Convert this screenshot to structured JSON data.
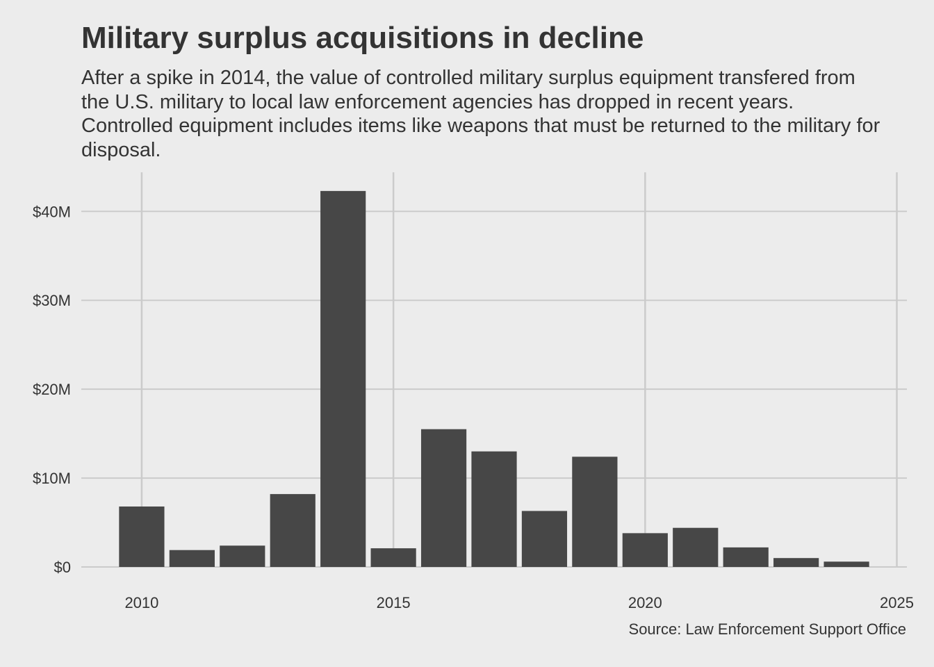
{
  "title": "Military surplus acquisitions in decline",
  "subtitle": "After a spike in 2014, the value of controlled military surplus equipment transfered from the U.S. military to local law enforcement agencies has dropped in recent years. Controlled equipment includes items like weapons that must be returned to the military for disposal.",
  "caption": "Source: Law Enforcement Support Office",
  "colors": {
    "background": "#ececec",
    "bar": "#474747",
    "grid": "#cbcbcb",
    "text": "#333333"
  },
  "chart_data": {
    "type": "bar",
    "title": "Military surplus acquisitions in decline",
    "xlabel": "",
    "ylabel": "",
    "x": [
      2010,
      2011,
      2012,
      2013,
      2014,
      2015,
      2016,
      2017,
      2018,
      2019,
      2020,
      2021,
      2022,
      2023,
      2024
    ],
    "values": [
      6.8,
      1.9,
      2.4,
      8.2,
      42.3,
      2.1,
      15.5,
      13.0,
      6.3,
      12.4,
      3.8,
      4.4,
      2.2,
      1.0,
      0.6
    ],
    "value_unit": "millions of dollars",
    "xlim": [
      2008.8,
      2025.2
    ],
    "ylim": [
      0,
      44.4
    ],
    "x_ticks": [
      {
        "value": 2010,
        "label": "2010"
      },
      {
        "value": 2015,
        "label": "2015"
      },
      {
        "value": 2020,
        "label": "2020"
      },
      {
        "value": 2025,
        "label": "2025"
      }
    ],
    "y_ticks": [
      {
        "value": 0,
        "label": "$0"
      },
      {
        "value": 10,
        "label": "$10M"
      },
      {
        "value": 20,
        "label": "$20M"
      },
      {
        "value": 30,
        "label": "$30M"
      },
      {
        "value": 40,
        "label": "$40M"
      }
    ],
    "grid": true,
    "legend": "none"
  }
}
